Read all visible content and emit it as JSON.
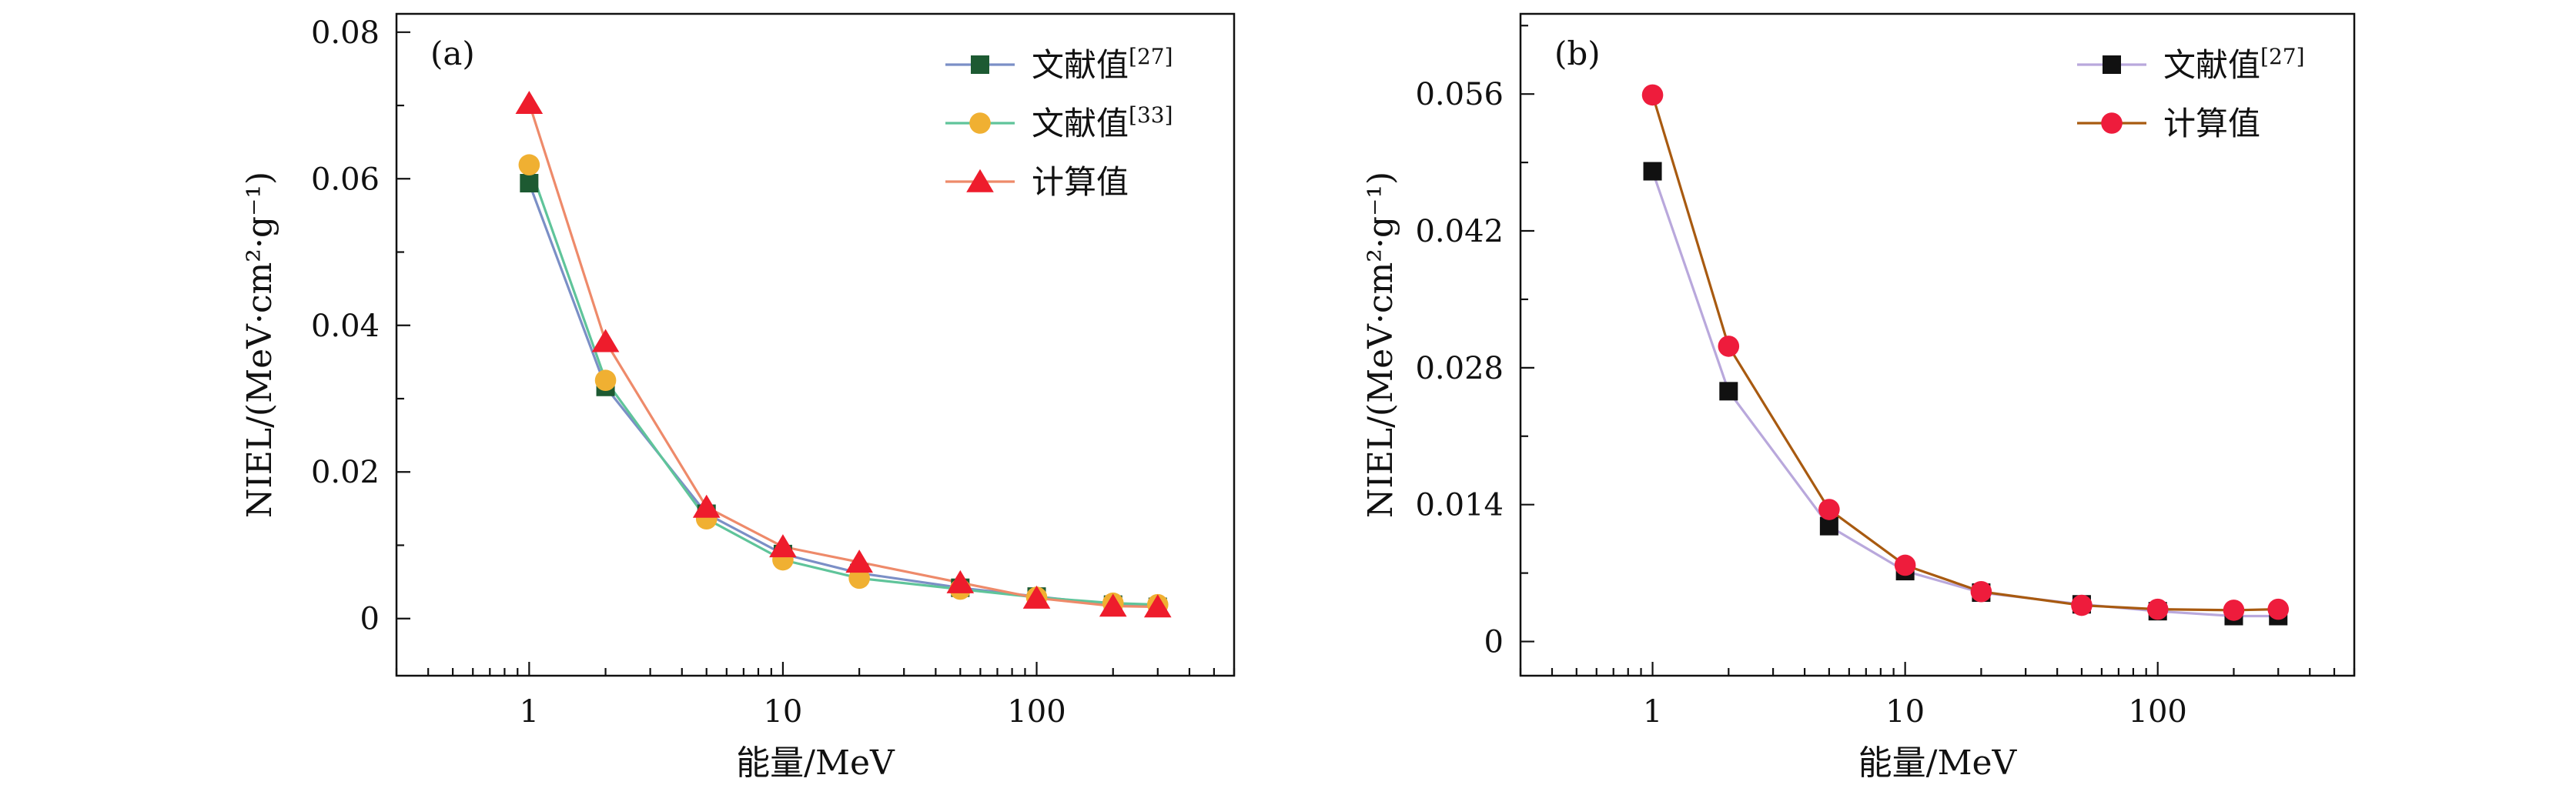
{
  "chart_data": [
    {
      "type": "line",
      "panel_label": "(a)",
      "xlabel": "能量/MeV",
      "ylabel": "NIEL/(MeV·cm²·g⁻¹)",
      "xscale": "log",
      "xlim": [
        0.3,
        600
      ],
      "ylim": [
        -0.0078,
        0.0825
      ],
      "xticks": [
        1,
        10,
        100
      ],
      "xtick_labels": [
        "1",
        "10",
        "100"
      ],
      "yticks": [
        0,
        0.02,
        0.04,
        0.06,
        0.08
      ],
      "ytick_labels": [
        "0",
        "0.02",
        "0.04",
        "0.06",
        "0.08"
      ],
      "grid": false,
      "legend_position": "top-right",
      "series": [
        {
          "name": "文献值[27]",
          "name_base": "文献值",
          "name_sup": "[27]",
          "line_color": "#7b8fc6",
          "marker_color": "#1d5a32",
          "marker": "square",
          "x": [
            1,
            2,
            5,
            10,
            20,
            50,
            100,
            200,
            300
          ],
          "y": [
            0.0594,
            0.0316,
            0.0143,
            0.0088,
            0.0062,
            0.0042,
            0.003,
            0.0019,
            0.0016
          ]
        },
        {
          "name": "文献值[33]",
          "name_base": "文献值",
          "name_sup": "[33]",
          "line_color": "#5fc49a",
          "marker_color": "#f0b032",
          "marker": "circle",
          "x": [
            1,
            2,
            5,
            10,
            20,
            50,
            100,
            200,
            300
          ],
          "y": [
            0.0619,
            0.0325,
            0.0136,
            0.008,
            0.0055,
            0.004,
            0.0029,
            0.0021,
            0.0019
          ]
        },
        {
          "name": "计算值",
          "name_base": "计算值",
          "name_sup": "",
          "line_color": "#ee8a6a",
          "marker_color": "#ee1c2c",
          "marker": "triangle",
          "x": [
            1,
            2,
            5,
            10,
            20,
            50,
            100,
            200,
            300
          ],
          "y": [
            0.0703,
            0.0378,
            0.0152,
            0.0098,
            0.0077,
            0.0049,
            0.0028,
            0.0017,
            0.0016
          ]
        }
      ]
    },
    {
      "type": "line",
      "panel_label": "(b)",
      "xlabel": "能量/MeV",
      "ylabel": "NIEL/(MeV·cm²·g⁻¹)",
      "xscale": "log",
      "xlim": [
        0.3,
        600
      ],
      "ylim": [
        -0.0035,
        0.0642
      ],
      "xticks": [
        1,
        10,
        100
      ],
      "xtick_labels": [
        "1",
        "10",
        "100"
      ],
      "yticks": [
        0,
        0.014,
        0.028,
        0.042,
        0.056
      ],
      "ytick_labels": [
        "0",
        "0.014",
        "0.028",
        "0.042",
        "0.056"
      ],
      "grid": false,
      "legend_position": "top-right",
      "series": [
        {
          "name": "文献值[27]",
          "name_base": "文献值",
          "name_sup": "[27]",
          "line_color": "#b9a8dc",
          "marker_color": "#111111",
          "marker": "square",
          "x": [
            1,
            2,
            5,
            10,
            20,
            50,
            100,
            200,
            300
          ],
          "y": [
            0.0481,
            0.0256,
            0.0118,
            0.0072,
            0.005,
            0.0038,
            0.0031,
            0.0026,
            0.0026
          ]
        },
        {
          "name": "计算值",
          "name_base": "计算值",
          "name_sup": "",
          "line_color": "#a85a10",
          "marker_color": "#ee1c3c",
          "marker": "circle",
          "x": [
            1,
            2,
            5,
            10,
            20,
            50,
            100,
            200,
            300
          ],
          "y": [
            0.0559,
            0.0302,
            0.0135,
            0.0078,
            0.0051,
            0.0037,
            0.0033,
            0.0032,
            0.0033
          ]
        }
      ]
    }
  ]
}
